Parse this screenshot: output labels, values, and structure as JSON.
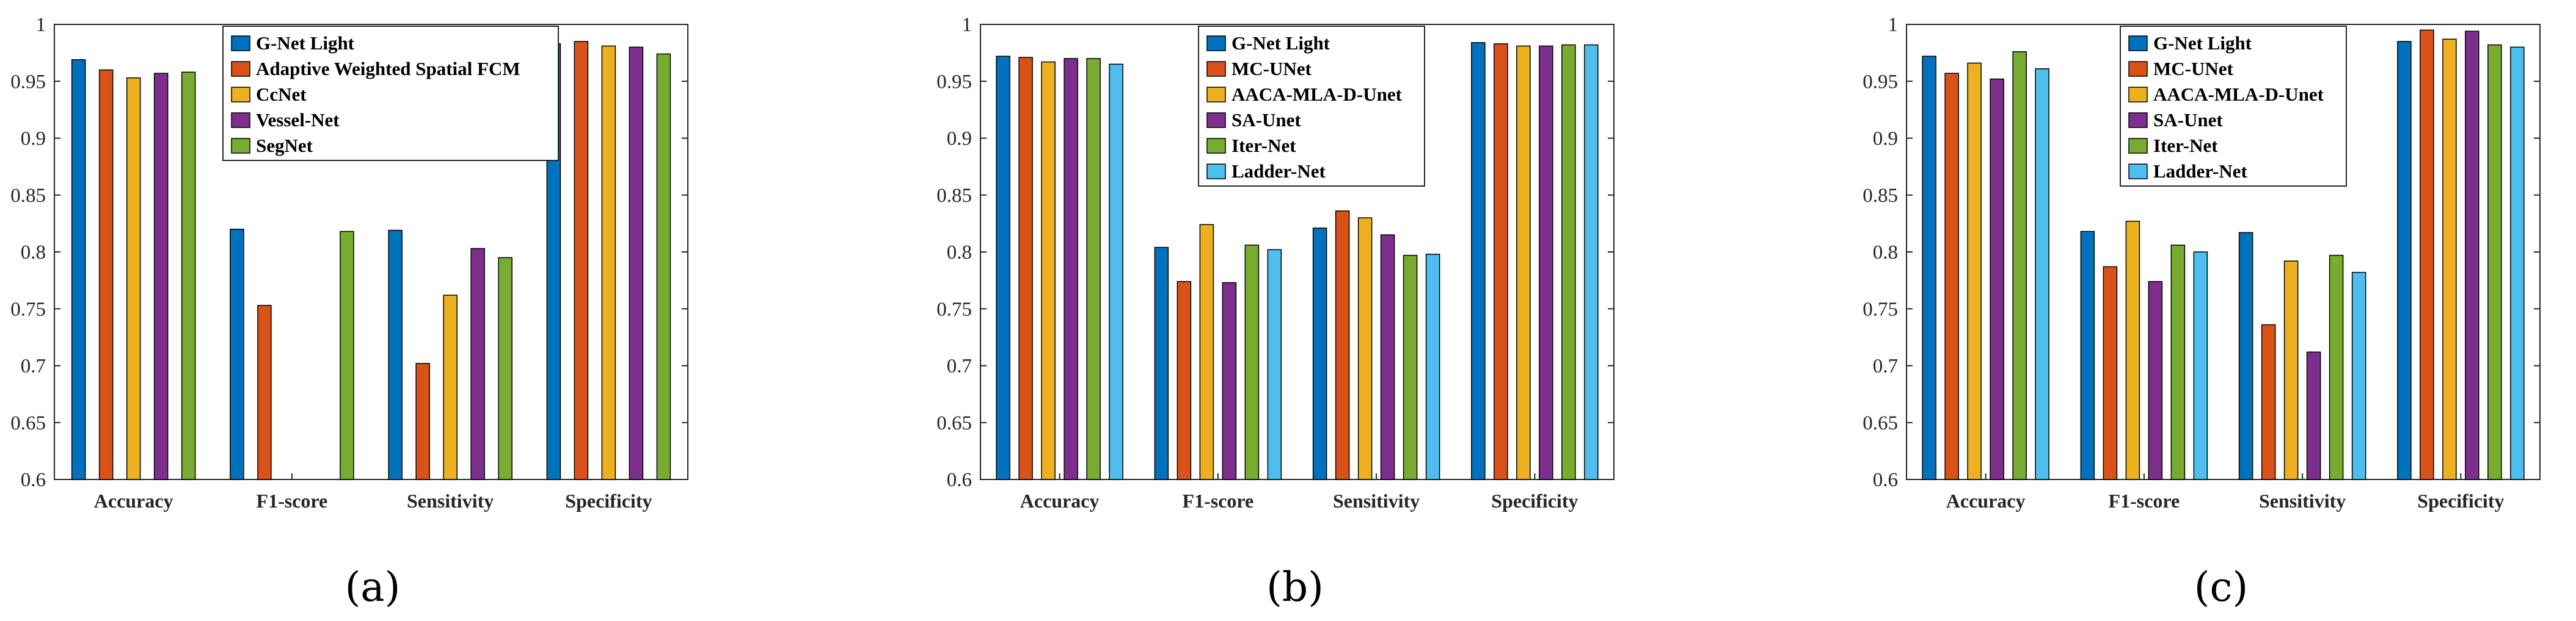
{
  "colors": {
    "blue": "#0072BD",
    "orange": "#D95319",
    "yellow": "#EDB120",
    "purple": "#7E2F8E",
    "green": "#77AC30",
    "cyan": "#4DBEEE"
  },
  "chart_data": [
    {
      "type": "bar",
      "panel_label": "(a)",
      "categories": [
        "Accuracy",
        "F1-score",
        "Sensitivity",
        "Specificity"
      ],
      "ylim": [
        0.6,
        1.0
      ],
      "yticks": [
        "0.6",
        "0.65",
        "0.7",
        "0.75",
        "0.8",
        "0.85",
        "0.9",
        "0.95",
        "1"
      ],
      "legend_position": "top-center",
      "series": [
        {
          "name": "G-Net Light",
          "color": "blue",
          "values": [
            0.969,
            0.82,
            0.819,
            0.983
          ]
        },
        {
          "name": "Adaptive Weighted Spatial FCM",
          "color": "orange",
          "values": [
            0.96,
            0.753,
            0.702,
            0.985
          ]
        },
        {
          "name": "CcNet",
          "color": "yellow",
          "values": [
            0.953,
            null,
            0.762,
            0.981
          ]
        },
        {
          "name": "Vessel-Net",
          "color": "purple",
          "values": [
            0.957,
            null,
            0.803,
            0.98
          ]
        },
        {
          "name": "SegNet",
          "color": "green",
          "values": [
            0.958,
            0.818,
            0.795,
            0.974
          ]
        }
      ]
    },
    {
      "type": "bar",
      "panel_label": "(b)",
      "categories": [
        "Accuracy",
        "F1-score",
        "Sensitivity",
        "Specificity"
      ],
      "ylim": [
        0.6,
        1.0
      ],
      "yticks": [
        "0.6",
        "0.65",
        "0.7",
        "0.75",
        "0.8",
        "0.85",
        "0.9",
        "0.95",
        "1"
      ],
      "legend_position": "top-center",
      "series": [
        {
          "name": "G-Net Light",
          "color": "blue",
          "values": [
            0.972,
            0.804,
            0.821,
            0.984
          ]
        },
        {
          "name": "MC-UNet",
          "color": "orange",
          "values": [
            0.971,
            0.774,
            0.836,
            0.983
          ]
        },
        {
          "name": "AACA-MLA-D-Unet",
          "color": "yellow",
          "values": [
            0.967,
            0.824,
            0.83,
            0.981
          ]
        },
        {
          "name": "SA-Unet",
          "color": "purple",
          "values": [
            0.97,
            0.773,
            0.815,
            0.981
          ]
        },
        {
          "name": "Iter-Net",
          "color": "green",
          "values": [
            0.97,
            0.806,
            0.797,
            0.982
          ]
        },
        {
          "name": "Ladder-Net",
          "color": "cyan",
          "values": [
            0.965,
            0.802,
            0.798,
            0.982
          ]
        }
      ]
    },
    {
      "type": "bar",
      "panel_label": "(c)",
      "categories": [
        "Accuracy",
        "F1-score",
        "Sensitivity",
        "Specificity"
      ],
      "ylim": [
        0.6,
        1.0
      ],
      "yticks": [
        "0.6",
        "0.65",
        "0.7",
        "0.75",
        "0.8",
        "0.85",
        "0.9",
        "0.95",
        "1"
      ],
      "legend_position": "top-center",
      "series": [
        {
          "name": "G-Net Light",
          "color": "blue",
          "values": [
            0.972,
            0.818,
            0.817,
            0.985
          ]
        },
        {
          "name": "MC-UNet",
          "color": "orange",
          "values": [
            0.957,
            0.787,
            0.736,
            0.995
          ]
        },
        {
          "name": "AACA-MLA-D-Unet",
          "color": "yellow",
          "values": [
            0.966,
            0.827,
            0.792,
            0.987
          ]
        },
        {
          "name": "SA-Unet",
          "color": "purple",
          "values": [
            0.952,
            0.774,
            0.712,
            0.994
          ]
        },
        {
          "name": "Iter-Net",
          "color": "green",
          "values": [
            0.976,
            0.806,
            0.797,
            0.982
          ]
        },
        {
          "name": "Ladder-Net",
          "color": "cyan",
          "values": [
            0.961,
            0.8,
            0.782,
            0.98
          ]
        }
      ]
    }
  ]
}
